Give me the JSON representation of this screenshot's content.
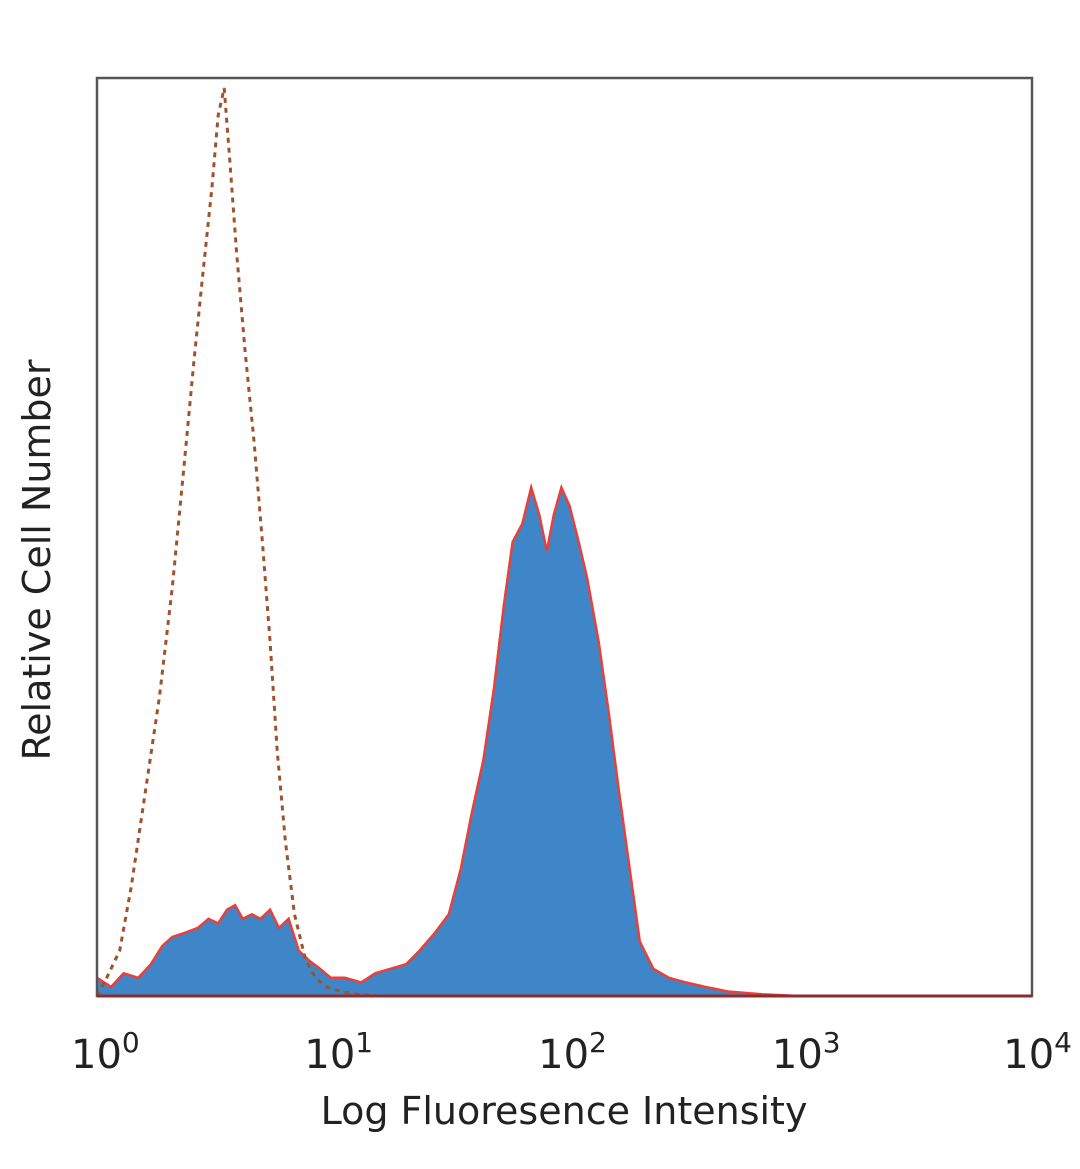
{
  "chart_data": {
    "type": "area",
    "title": "",
    "xlabel": "Log Fluoresence Intensity",
    "ylabel": "Relative Cell Number",
    "xscale": "log",
    "xlim": [
      1,
      10000
    ],
    "ylim": [
      0,
      100
    ],
    "x_ticks": [
      {
        "base": "10",
        "exp": "0"
      },
      {
        "base": "10",
        "exp": "1"
      },
      {
        "base": "10",
        "exp": "2"
      },
      {
        "base": "10",
        "exp": "3"
      },
      {
        "base": "10",
        "exp": "4"
      }
    ],
    "grid": false,
    "legend": "none",
    "series": [
      {
        "style": "filled",
        "fill_color": "#3f86c8",
        "edge_color": "#e8403a",
        "points": [
          [
            1.0,
            2
          ],
          [
            1.15,
            1
          ],
          [
            1.3,
            2.5
          ],
          [
            1.5,
            2
          ],
          [
            1.7,
            3.5
          ],
          [
            1.9,
            5.5
          ],
          [
            2.1,
            6.5
          ],
          [
            2.4,
            7
          ],
          [
            2.7,
            7.5
          ],
          [
            3.0,
            8.5
          ],
          [
            3.3,
            8
          ],
          [
            3.6,
            9.5
          ],
          [
            3.9,
            10
          ],
          [
            4.2,
            8.5
          ],
          [
            4.6,
            9
          ],
          [
            5.0,
            8.5
          ],
          [
            5.5,
            9.5
          ],
          [
            6.0,
            7.5
          ],
          [
            6.6,
            8.5
          ],
          [
            7.3,
            5
          ],
          [
            8.0,
            4
          ],
          [
            9.0,
            3
          ],
          [
            10.0,
            2
          ],
          [
            11.5,
            2
          ],
          [
            13.5,
            1.5
          ],
          [
            15.5,
            2.5
          ],
          [
            18,
            3
          ],
          [
            21,
            3.5
          ],
          [
            24,
            5
          ],
          [
            28,
            7
          ],
          [
            32,
            9
          ],
          [
            36,
            14
          ],
          [
            40,
            20
          ],
          [
            45,
            26
          ],
          [
            50,
            34
          ],
          [
            55,
            43
          ],
          [
            60,
            50
          ],
          [
            66,
            52
          ],
          [
            72,
            56
          ],
          [
            78,
            53
          ],
          [
            84,
            49
          ],
          [
            90,
            53
          ],
          [
            97,
            56
          ],
          [
            105,
            54
          ],
          [
            115,
            50
          ],
          [
            125,
            46
          ],
          [
            140,
            39
          ],
          [
            155,
            31
          ],
          [
            170,
            23
          ],
          [
            190,
            14
          ],
          [
            210,
            6
          ],
          [
            240,
            3
          ],
          [
            280,
            2
          ],
          [
            330,
            1.5
          ],
          [
            400,
            1
          ],
          [
            500,
            0.5
          ],
          [
            700,
            0.2
          ],
          [
            1000,
            0
          ],
          [
            10000,
            0
          ]
        ]
      },
      {
        "style": "dotted",
        "line_color": "#a0522d",
        "points": [
          [
            1.0,
            0
          ],
          [
            1.1,
            2
          ],
          [
            1.25,
            5
          ],
          [
            1.4,
            12
          ],
          [
            1.6,
            22
          ],
          [
            1.85,
            33
          ],
          [
            2.1,
            45
          ],
          [
            2.35,
            58
          ],
          [
            2.6,
            70
          ],
          [
            2.85,
            80
          ],
          [
            3.1,
            89
          ],
          [
            3.3,
            97
          ],
          [
            3.5,
            100
          ],
          [
            3.7,
            92
          ],
          [
            3.95,
            82
          ],
          [
            4.3,
            71
          ],
          [
            4.7,
            61
          ],
          [
            5.1,
            50
          ],
          [
            5.5,
            39
          ],
          [
            5.9,
            27
          ],
          [
            6.4,
            17
          ],
          [
            7.0,
            9
          ],
          [
            7.8,
            4
          ],
          [
            8.6,
            2
          ],
          [
            9.6,
            1
          ],
          [
            11,
            0.5
          ],
          [
            13,
            0.2
          ],
          [
            16,
            0
          ],
          [
            10000,
            0
          ]
        ]
      }
    ]
  }
}
